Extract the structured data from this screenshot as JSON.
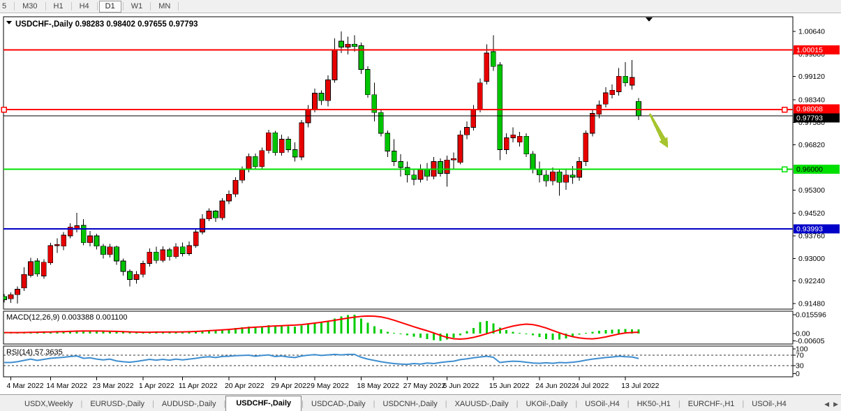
{
  "toolbar": {
    "buttons": [
      "5",
      "M30",
      "H1",
      "H4",
      "D1",
      "W1",
      "MN"
    ],
    "active": "D1"
  },
  "header": {
    "symbol_label": "USDCHF-,Daily",
    "ohlc_display": "0.98283 0.98402 0.97655 0.97793"
  },
  "price_axis": {
    "labels": [
      {
        "p": 1.0064,
        "t": "1.00640"
      },
      {
        "p": 0.9988,
        "t": "0.99880"
      },
      {
        "p": 0.9912,
        "t": "0.99120"
      },
      {
        "p": 0.9834,
        "t": "0.98340"
      },
      {
        "p": 0.9758,
        "t": "0.97580"
      },
      {
        "p": 0.9682,
        "t": "0.96820"
      },
      {
        "p": 0.953,
        "t": "0.95300"
      },
      {
        "p": 0.9452,
        "t": "0.94520"
      },
      {
        "p": 0.9376,
        "t": "0.93760"
      },
      {
        "p": 0.93,
        "t": "0.93000"
      },
      {
        "p": 0.9224,
        "t": "0.92240"
      },
      {
        "p": 0.9148,
        "t": "0.91480"
      }
    ]
  },
  "levels": [
    {
      "name": "resistance-line-upper",
      "price": 1.00015,
      "label": "1.00015",
      "color": "#ff0000",
      "text_color": "#ffffff",
      "width": 2,
      "handles": false
    },
    {
      "name": "resistance-line-lower",
      "price": 0.98008,
      "label": "0.98008",
      "color": "#ff0000",
      "text_color": "#ffffff",
      "width": 2,
      "handles": true
    },
    {
      "name": "bid-price-line",
      "price": 0.97793,
      "label": "0.97793",
      "color": "#000000",
      "text_color": "#ffffff",
      "width": 1,
      "handles": false
    },
    {
      "name": "support-line-green",
      "price": 0.96,
      "label": "0.96000",
      "color": "#00e000",
      "text_color": "#000000",
      "width": 2,
      "handles": true
    },
    {
      "name": "support-line-blue",
      "price": 0.93993,
      "label": "0.93993",
      "color": "#0000c8",
      "text_color": "#ffffff",
      "width": 2,
      "handles": false
    }
  ],
  "chart_data": {
    "type": "candlestick",
    "symbol": "USDCHF",
    "timeframe": "Daily",
    "y_axis": {
      "min": 0.91292,
      "max": 1.01133,
      "tick_interval": 0.0076
    },
    "ohlc": [
      [
        "2022-03-03",
        0.9172,
        0.918,
        0.9152,
        0.9161
      ],
      [
        "2022-03-04",
        0.9164,
        0.9186,
        0.915,
        0.9178
      ],
      [
        "2022-03-07",
        0.9178,
        0.9206,
        0.9148,
        0.9196
      ],
      [
        "2022-03-08",
        0.92,
        0.927,
        0.919,
        0.9246
      ],
      [
        "2022-03-09",
        0.9243,
        0.9302,
        0.9236,
        0.9289
      ],
      [
        "2022-03-10",
        0.9291,
        0.9301,
        0.9238,
        0.9247
      ],
      [
        "2022-03-11",
        0.9241,
        0.9297,
        0.9231,
        0.9287
      ],
      [
        "2022-03-14",
        0.9285,
        0.9352,
        0.9278,
        0.9343
      ],
      [
        "2022-03-15",
        0.9343,
        0.9368,
        0.9318,
        0.9347
      ],
      [
        "2022-03-16",
        0.9341,
        0.9389,
        0.9328,
        0.9378
      ],
      [
        "2022-03-17",
        0.9376,
        0.9418,
        0.9368,
        0.9406
      ],
      [
        "2022-03-18",
        0.9399,
        0.9453,
        0.9388,
        0.941
      ],
      [
        "2022-03-21",
        0.9411,
        0.9432,
        0.9344,
        0.9353
      ],
      [
        "2022-03-22",
        0.9353,
        0.9392,
        0.9341,
        0.9376
      ],
      [
        "2022-03-23",
        0.9376,
        0.9383,
        0.933,
        0.9341
      ],
      [
        "2022-03-24",
        0.9341,
        0.9349,
        0.93,
        0.9313
      ],
      [
        "2022-03-25",
        0.9313,
        0.9349,
        0.9303,
        0.9339
      ],
      [
        "2022-03-28",
        0.9339,
        0.9343,
        0.9278,
        0.9291
      ],
      [
        "2022-03-29",
        0.9291,
        0.9299,
        0.9242,
        0.9256
      ],
      [
        "2022-03-30",
        0.9256,
        0.9263,
        0.9205,
        0.9229
      ],
      [
        "2022-03-31",
        0.9229,
        0.9257,
        0.9215,
        0.9246
      ],
      [
        "2022-04-01",
        0.9246,
        0.9293,
        0.9236,
        0.9283
      ],
      [
        "2022-04-04",
        0.9283,
        0.9333,
        0.9273,
        0.9321
      ],
      [
        "2022-04-05",
        0.9321,
        0.9339,
        0.9283,
        0.9293
      ],
      [
        "2022-04-06",
        0.9293,
        0.9341,
        0.9286,
        0.9329
      ],
      [
        "2022-04-07",
        0.9329,
        0.9336,
        0.9293,
        0.9306
      ],
      [
        "2022-04-08",
        0.9306,
        0.9351,
        0.9299,
        0.9339
      ],
      [
        "2022-04-11",
        0.9339,
        0.9353,
        0.9306,
        0.9316
      ],
      [
        "2022-04-12",
        0.9316,
        0.9357,
        0.9309,
        0.9343
      ],
      [
        "2022-04-13",
        0.9343,
        0.9399,
        0.9336,
        0.9389
      ],
      [
        "2022-04-14",
        0.9389,
        0.9449,
        0.9381,
        0.9433
      ],
      [
        "2022-04-15",
        0.9433,
        0.9469,
        0.9425,
        0.9459
      ],
      [
        "2022-04-18",
        0.9459,
        0.9463,
        0.9423,
        0.9436
      ],
      [
        "2022-04-19",
        0.9436,
        0.9503,
        0.9429,
        0.9493
      ],
      [
        "2022-04-20",
        0.9493,
        0.9529,
        0.9483,
        0.9516
      ],
      [
        "2022-04-21",
        0.9516,
        0.9573,
        0.9506,
        0.9563
      ],
      [
        "2022-04-22",
        0.9563,
        0.9609,
        0.9553,
        0.9599
      ],
      [
        "2022-04-25",
        0.9599,
        0.9653,
        0.9589,
        0.9643
      ],
      [
        "2022-04-26",
        0.9643,
        0.9653,
        0.9599,
        0.9609
      ],
      [
        "2022-04-27",
        0.9609,
        0.9673,
        0.9601,
        0.9663
      ],
      [
        "2022-04-28",
        0.9663,
        0.9733,
        0.9653,
        0.9723
      ],
      [
        "2022-04-29",
        0.9723,
        0.9729,
        0.9646,
        0.9656
      ],
      [
        "2022-05-02",
        0.9656,
        0.9716,
        0.9646,
        0.9701
      ],
      [
        "2022-05-03",
        0.9701,
        0.9711,
        0.9656,
        0.9666
      ],
      [
        "2022-05-04",
        0.9666,
        0.9691,
        0.9626,
        0.9641
      ],
      [
        "2022-05-05",
        0.9641,
        0.9766,
        0.9631,
        0.9756
      ],
      [
        "2022-05-06",
        0.9756,
        0.9816,
        0.9741,
        0.9801
      ],
      [
        "2022-05-09",
        0.9801,
        0.9871,
        0.9791,
        0.9856
      ],
      [
        "2022-05-10",
        0.9856,
        0.9866,
        0.9816,
        0.9831
      ],
      [
        "2022-05-11",
        0.9831,
        0.9916,
        0.9811,
        0.9901
      ],
      [
        "2022-05-12",
        0.9901,
        1.0041,
        0.9891,
        1.0001
      ],
      [
        "2022-05-13",
        1.0031,
        1.0064,
        0.9991,
        1.0011
      ],
      [
        "2022-05-16",
        1.0011,
        1.0046,
        0.9986,
        1.0021
      ],
      [
        "2022-05-17",
        1.0021,
        1.0051,
        0.9996,
        1.0013
      ],
      [
        "2022-05-18",
        1.0016,
        1.0026,
        0.9921,
        0.9936
      ],
      [
        "2022-05-19",
        0.9936,
        0.9946,
        0.9841,
        0.9851
      ],
      [
        "2022-05-20",
        0.9851,
        0.9891,
        0.9761,
        0.9791
      ],
      [
        "2022-05-23",
        0.9791,
        0.9801,
        0.9711,
        0.9721
      ],
      [
        "2022-05-24",
        0.9721,
        0.9731,
        0.9641,
        0.9661
      ],
      [
        "2022-05-25",
        0.9661,
        0.9701,
        0.9611,
        0.9626
      ],
      [
        "2022-05-26",
        0.9626,
        0.9651,
        0.9576,
        0.9606
      ],
      [
        "2022-05-27",
        0.9606,
        0.9626,
        0.9556,
        0.9581
      ],
      [
        "2022-05-30",
        0.9581,
        0.9601,
        0.9546,
        0.9566
      ],
      [
        "2022-05-31",
        0.9566,
        0.9616,
        0.9556,
        0.9601
      ],
      [
        "2022-06-01",
        0.9601,
        0.9621,
        0.9561,
        0.9576
      ],
      [
        "2022-06-02",
        0.9576,
        0.9641,
        0.9566,
        0.9626
      ],
      [
        "2022-06-03",
        0.9626,
        0.9636,
        0.9576,
        0.9586
      ],
      [
        "2022-06-06",
        0.9586,
        0.9646,
        0.9541,
        0.9631
      ],
      [
        "2022-06-07",
        0.9631,
        0.9656,
        0.9601,
        0.9636
      ],
      [
        "2022-06-08",
        0.9623,
        0.9731,
        0.9616,
        0.9716
      ],
      [
        "2022-06-09",
        0.9716,
        0.9761,
        0.9701,
        0.9741
      ],
      [
        "2022-06-10",
        0.9741,
        0.9816,
        0.9731,
        0.9801
      ],
      [
        "2022-06-13",
        0.9801,
        0.9906,
        0.9791,
        0.9891
      ],
      [
        "2022-06-14",
        0.9896,
        1.0021,
        0.9886,
        0.9991
      ],
      [
        "2022-06-15",
        0.9996,
        1.0051,
        0.9931,
        0.9946
      ],
      [
        "2022-06-16",
        0.9951,
        0.9961,
        0.9631,
        0.9666
      ],
      [
        "2022-06-17",
        0.9666,
        0.9721,
        0.9651,
        0.9706
      ],
      [
        "2022-06-20",
        0.9706,
        0.9741,
        0.9691,
        0.9716
      ],
      [
        "2022-06-21",
        0.9691,
        0.9726,
        0.9676,
        0.9711
      ],
      [
        "2022-06-22",
        0.9711,
        0.9721,
        0.9641,
        0.9651
      ],
      [
        "2022-06-23",
        0.9651,
        0.9661,
        0.9586,
        0.9601
      ],
      [
        "2022-06-24",
        0.9601,
        0.9626,
        0.9556,
        0.9581
      ],
      [
        "2022-06-27",
        0.9581,
        0.9596,
        0.9541,
        0.9561
      ],
      [
        "2022-06-28",
        0.9561,
        0.9606,
        0.9546,
        0.9591
      ],
      [
        "2022-06-29",
        0.9591,
        0.9601,
        0.9511,
        0.9556
      ],
      [
        "2022-06-30",
        0.9556,
        0.9601,
        0.9531,
        0.9581
      ],
      [
        "2022-07-01",
        0.9581,
        0.9611,
        0.9551,
        0.9573
      ],
      [
        "2022-07-04",
        0.9573,
        0.9641,
        0.9561,
        0.9626
      ],
      [
        "2022-07-05",
        0.9626,
        0.9731,
        0.9611,
        0.9721
      ],
      [
        "2022-07-06",
        0.9721,
        0.9801,
        0.9711,
        0.9788
      ],
      [
        "2022-07-07",
        0.9785,
        0.9831,
        0.9771,
        0.9816
      ],
      [
        "2022-07-08",
        0.9819,
        0.9876,
        0.9808,
        0.9857
      ],
      [
        "2022-07-11",
        0.9851,
        0.9886,
        0.9838,
        0.9866
      ],
      [
        "2022-07-12",
        0.9861,
        0.9941,
        0.9848,
        0.9913
      ],
      [
        "2022-07-13",
        0.9913,
        0.9961,
        0.9878,
        0.9891
      ],
      [
        "2022-07-14",
        0.9883,
        0.9968,
        0.9868,
        0.9909
      ],
      [
        "2022-07-15",
        0.98283,
        0.98402,
        0.97655,
        0.97793
      ]
    ],
    "indicators": {
      "macd": {
        "label": "MACD(12,26,9) 0.003388 0.001100",
        "params": "12,26,9",
        "current_macd": 0.003388,
        "current_signal": 0.0011,
        "axis_labels": [
          {
            "v": 0.015596,
            "t": "0.015596"
          },
          {
            "v": 0.0,
            "t": "0.00"
          },
          {
            "v": -0.00605,
            "t": "-0.00605"
          }
        ],
        "histogram": [
          0.0005,
          0.0005,
          0.0006,
          0.0008,
          0.001,
          0.0011,
          0.0012,
          0.0014,
          0.0016,
          0.0018,
          0.002,
          0.0022,
          0.0022,
          0.0021,
          0.0019,
          0.0017,
          0.0016,
          0.0014,
          0.0011,
          0.0008,
          0.0007,
          0.0008,
          0.001,
          0.0011,
          0.0012,
          0.0012,
          0.0013,
          0.0013,
          0.0014,
          0.0017,
          0.0022,
          0.0027,
          0.003,
          0.0034,
          0.0039,
          0.0045,
          0.0051,
          0.0057,
          0.0058,
          0.0062,
          0.0069,
          0.0067,
          0.0065,
          0.0062,
          0.0059,
          0.0067,
          0.0075,
          0.0083,
          0.009,
          0.0105,
          0.0125,
          0.0142,
          0.0152,
          0.0156,
          0.0125,
          0.009,
          0.006,
          0.0035,
          0.0015,
          0.0005,
          -0.0005,
          -0.0015,
          -0.0025,
          -0.0035,
          -0.0045,
          -0.0055,
          -0.006,
          -0.005,
          -0.0035,
          -0.0015,
          0.002,
          0.0045,
          0.0095,
          0.0104,
          0.0085,
          0.005,
          0.003,
          0.0015,
          0.0005,
          -0.0005,
          -0.0015,
          -0.003,
          -0.0045,
          -0.0052,
          -0.005,
          -0.004,
          -0.0025,
          -0.001,
          0.0005,
          0.0015,
          0.0022,
          0.0028,
          0.0032,
          0.0036,
          0.0038,
          0.0036,
          0.0034
        ],
        "signal": [
          0.0008,
          0.0008,
          0.0008,
          0.0009,
          0.001,
          0.0011,
          0.0012,
          0.0013,
          0.0015,
          0.0016,
          0.0018,
          0.002,
          0.0021,
          0.0021,
          0.0021,
          0.002,
          0.0019,
          0.0018,
          0.0016,
          0.0014,
          0.0012,
          0.0011,
          0.0011,
          0.0012,
          0.0012,
          0.0013,
          0.0013,
          0.0014,
          0.0015,
          0.0017,
          0.002,
          0.0024,
          0.0027,
          0.003,
          0.0034,
          0.0039,
          0.0044,
          0.0049,
          0.0053,
          0.0056,
          0.006,
          0.0063,
          0.0065,
          0.0068,
          0.007,
          0.0074,
          0.008,
          0.0087,
          0.0094,
          0.0102,
          0.011,
          0.0119,
          0.0128,
          0.0136,
          0.0142,
          0.0145,
          0.0144,
          0.0138,
          0.0126,
          0.011,
          0.0092,
          0.0074,
          0.0056,
          0.0039,
          0.0023,
          0.0005,
          -0.0015,
          -0.0032,
          -0.0043,
          -0.0046,
          -0.0042,
          -0.0032,
          -0.0018,
          -0.0002,
          0.0015,
          0.0032,
          0.0048,
          0.0062,
          0.0072,
          0.0078,
          0.0074,
          0.0062,
          0.0046,
          0.0026,
          0.0006,
          -0.0012,
          -0.0026,
          -0.0036,
          -0.0042,
          -0.0044,
          -0.0038,
          -0.0028,
          -0.0016,
          -0.0004,
          0.0005,
          0.0009,
          0.0011
        ]
      },
      "rsi": {
        "label": "RSI(14) 57.3635",
        "period": 14,
        "current": 57.3635,
        "levels": [
          70,
          30
        ],
        "axis_labels": [
          {
            "v": 100,
            "t": "100"
          },
          {
            "v": 70,
            "t": "70"
          },
          {
            "v": 30,
            "t": "30"
          },
          {
            "v": 0,
            "t": "0"
          }
        ],
        "values": [
          42,
          42,
          45,
          50,
          55,
          50,
          54,
          58,
          60,
          62,
          65,
          67,
          58,
          60,
          55,
          52,
          55,
          48,
          45,
          43,
          46,
          50,
          54,
          51,
          54,
          51,
          55,
          52,
          55,
          58,
          62,
          64,
          61,
          65,
          66,
          68,
          69,
          70,
          66,
          69,
          71,
          65,
          67,
          63,
          61,
          67,
          70,
          72,
          69,
          71,
          73,
          71,
          73,
          73,
          62,
          55,
          50,
          45,
          41,
          38,
          36,
          35,
          38,
          36,
          40,
          38,
          42,
          45,
          47,
          53,
          56,
          60,
          63,
          66,
          62,
          42,
          45,
          47,
          46,
          43,
          40,
          39,
          41,
          39,
          42,
          41,
          43,
          46,
          51,
          55,
          58,
          61,
          63,
          66,
          64,
          63,
          57.4
        ]
      }
    }
  },
  "date_axis": {
    "labels": [
      "4 Mar 2022",
      "14 Mar 2022",
      "23 Mar 2022",
      "1 Apr 2022",
      "11 Apr 2022",
      "20 Apr 2022",
      "29 Apr 2022",
      "9 May 2022",
      "18 May 2022",
      "27 May 2022",
      "6 Jun 2022",
      "15 Jun 2022",
      "24 Jun 2022",
      "4 Jul 2022",
      "13 Jul 2022"
    ],
    "tick_indices": [
      1,
      7,
      14,
      21,
      27,
      34,
      41,
      47,
      54,
      61,
      67,
      74,
      81,
      87,
      94
    ]
  },
  "annotations": {
    "trend_arrow": {
      "color": "#a6c42e",
      "direction": "down-right"
    },
    "top_marker": "scroll-position-triangle"
  },
  "tabs": {
    "items": [
      "USDX,Weekly",
      "EURUSD-,Daily",
      "AUDUSD-,Daily",
      "USDCHF-,Daily",
      "USDCAD-,Daily",
      "USDCNH-,Daily",
      "XAUUSD-,Daily",
      "UKOil-,Daily",
      "USOil-,H4",
      "HK50-,H1",
      "EURCHF-,H1",
      "USOil-,H4"
    ],
    "active_index": 3,
    "nav_left": "◀",
    "nav_right": "▶"
  },
  "colors": {
    "bull": "#e60000",
    "bear": "#00c400",
    "wick": "#000000",
    "macd_hist": "#00cc00",
    "macd_signal": "#ff0000",
    "rsi_line": "#3e8ed0",
    "panel_border": "#000000",
    "arrow": "#a6c42e"
  }
}
